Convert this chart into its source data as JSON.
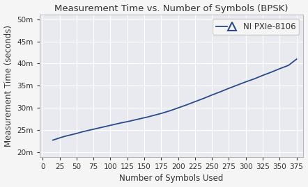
{
  "title": "Measurement Time vs. Number of Symbols (BPSK)",
  "xlabel": "Number of Symbols Used",
  "ylabel": "Measurement Time (seconds)",
  "legend_label": "NI PXIe-8106",
  "line_color": "#2a4a8a",
  "background_color": "#f5f5f5",
  "plot_bg_color": "#e8eaf0",
  "grid_color": "#ffffff",
  "xlim": [
    -5,
    385
  ],
  "ylim": [
    0.019,
    0.051
  ],
  "xticks": [
    0,
    25,
    50,
    75,
    100,
    125,
    150,
    175,
    200,
    225,
    250,
    275,
    300,
    325,
    350,
    375
  ],
  "yticks": [
    0.02,
    0.025,
    0.03,
    0.035,
    0.04,
    0.045,
    0.05
  ],
  "x_data": [
    15,
    22,
    28,
    35,
    42,
    50,
    58,
    65,
    75,
    85,
    95,
    105,
    115,
    125,
    135,
    145,
    155,
    165,
    175,
    188,
    200,
    213,
    225,
    238,
    250,
    263,
    275,
    288,
    300,
    313,
    325,
    338,
    350,
    363,
    375
  ],
  "y_data": [
    0.0228,
    0.02315,
    0.02345,
    0.02375,
    0.024,
    0.0243,
    0.02465,
    0.0249,
    0.02525,
    0.0256,
    0.02595,
    0.0263,
    0.02665,
    0.02695,
    0.0273,
    0.02765,
    0.028,
    0.0284,
    0.0288,
    0.0294,
    0.03005,
    0.03075,
    0.03145,
    0.0322,
    0.03295,
    0.0337,
    0.03445,
    0.0352,
    0.0359,
    0.0366,
    0.03735,
    0.0381,
    0.03885,
    0.0396,
    0.041
  ],
  "title_fontsize": 9.5,
  "axis_label_fontsize": 8.5,
  "tick_fontsize": 7.5,
  "legend_fontsize": 8.5,
  "figsize": [
    4.42,
    2.69
  ],
  "dpi": 100
}
